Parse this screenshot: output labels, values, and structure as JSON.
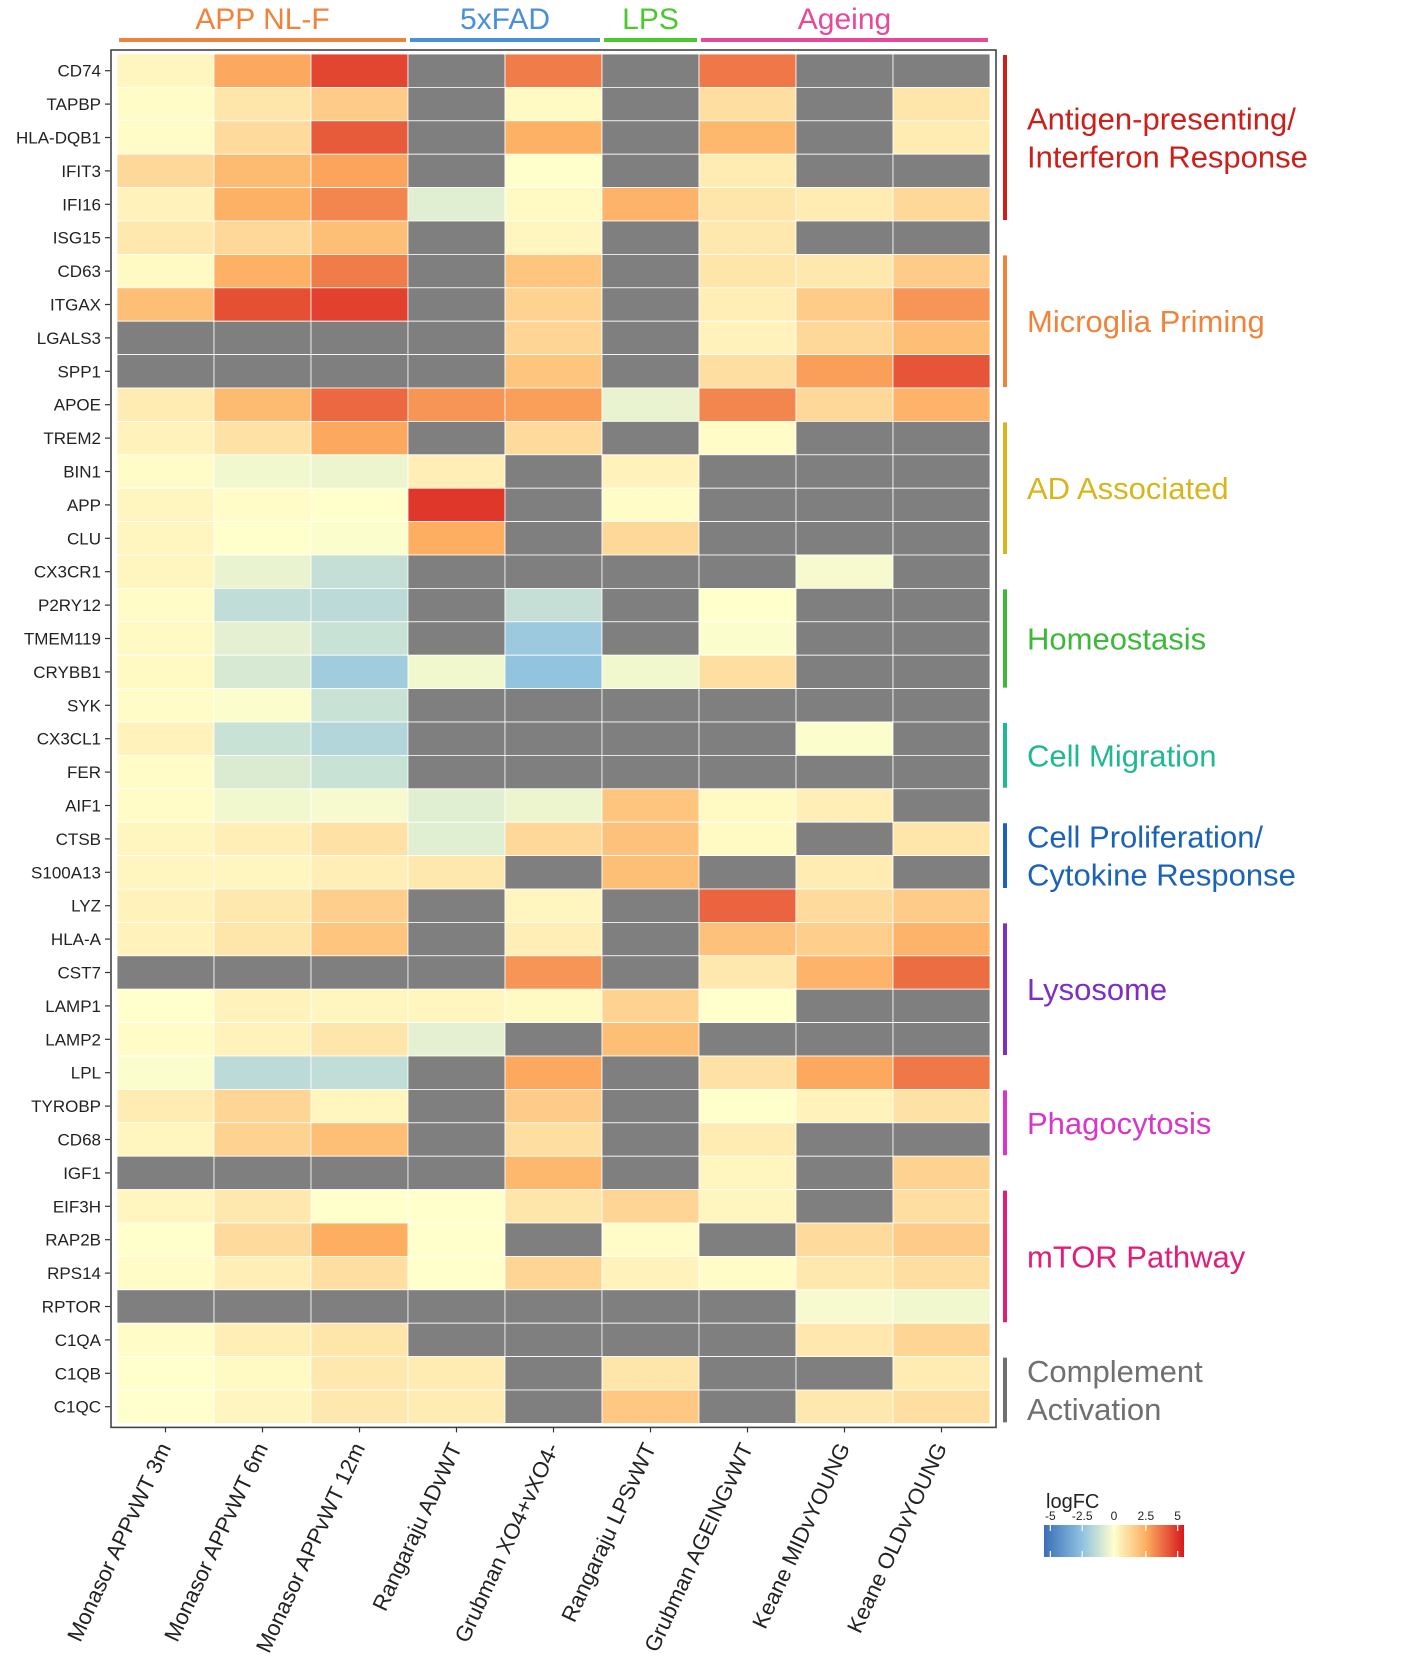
{
  "chart_data": {
    "type": "heatmap",
    "rows": [
      "CD74",
      "TAPBP",
      "HLA-DQB1",
      "IFIT3",
      "IFI16",
      "ISG15",
      "CD63",
      "ITGAX",
      "LGALS3",
      "SPP1",
      "APOE",
      "TREM2",
      "BIN1",
      "APP",
      "CLU",
      "CX3CR1",
      "P2RY12",
      "TMEM119",
      "CRYBB1",
      "SYK",
      "CX3CL1",
      "FER",
      "AIF1",
      "CTSB",
      "S100A13",
      "LYZ",
      "HLA-A",
      "CST7",
      "LAMP1",
      "LAMP2",
      "LPL",
      "TYROBP",
      "CD68",
      "IGF1",
      "EIF3H",
      "RAP2B",
      "RPS14",
      "RPTOR",
      "C1QA",
      "C1QB",
      "C1QC"
    ],
    "columns": [
      "Monasor APPvWT 3m",
      "Monasor APPvWT 6m",
      "Monasor APPvWT 12m",
      "Rangaraju ADvWT",
      "Grubman XO4+vXO4-",
      "Rangaraju LPSvWT",
      "Grubman AGEINGvWT",
      "Keane MIDvYOUNG",
      "Keane OLDvYOUNG"
    ],
    "values": [
      [
        0.3,
        2.6,
        4.6,
        null,
        3.5,
        null,
        3.6,
        null,
        null
      ],
      [
        0.1,
        0.8,
        1.6,
        null,
        0.2,
        null,
        1.0,
        null,
        0.8
      ],
      [
        0.1,
        1.1,
        4.2,
        null,
        2.4,
        null,
        2.2,
        null,
        0.6
      ],
      [
        1.2,
        2.1,
        2.7,
        null,
        0.0,
        null,
        0.6,
        null,
        null
      ],
      [
        0.4,
        2.4,
        3.3,
        -0.7,
        0.2,
        2.3,
        0.8,
        0.6,
        1.2
      ],
      [
        0.7,
        1.2,
        2.0,
        null,
        0.3,
        null,
        0.7,
        null,
        null
      ],
      [
        0.2,
        2.4,
        3.5,
        null,
        1.8,
        null,
        0.8,
        0.7,
        1.6
      ],
      [
        2.0,
        4.4,
        4.7,
        null,
        1.4,
        null,
        0.5,
        1.6,
        3.0
      ],
      [
        null,
        null,
        null,
        null,
        1.3,
        null,
        0.4,
        1.2,
        2.0
      ],
      [
        null,
        null,
        null,
        null,
        1.8,
        null,
        1.0,
        2.8,
        4.3
      ],
      [
        0.6,
        2.1,
        3.9,
        3.0,
        2.8,
        -0.5,
        3.3,
        1.2,
        2.3
      ],
      [
        0.4,
        0.9,
        2.6,
        null,
        1.1,
        null,
        0.1,
        null,
        null
      ],
      [
        0.1,
        -0.3,
        -0.4,
        0.5,
        null,
        0.4,
        null,
        null,
        null
      ],
      [
        0.3,
        0.1,
        0.0,
        4.9,
        null,
        0.1,
        null,
        null,
        null
      ],
      [
        0.3,
        0.0,
        -0.1,
        2.5,
        null,
        1.2,
        null,
        null,
        null
      ],
      [
        0.3,
        -0.5,
        -1.3,
        null,
        null,
        null,
        null,
        -0.2,
        null
      ],
      [
        0.1,
        -1.4,
        -1.5,
        null,
        -1.3,
        null,
        0.0,
        null,
        null
      ],
      [
        0.2,
        -0.6,
        -1.2,
        null,
        -2.2,
        null,
        -0.1,
        null,
        null
      ],
      [
        0.2,
        -0.9,
        -2.1,
        -0.3,
        -2.4,
        -0.3,
        1.0,
        null,
        null
      ],
      [
        0.1,
        -0.1,
        -1.2,
        null,
        null,
        null,
        null,
        null,
        null
      ],
      [
        0.4,
        -1.2,
        -1.7,
        null,
        null,
        null,
        null,
        -0.1,
        null
      ],
      [
        0.1,
        -0.8,
        -1.2,
        null,
        null,
        null,
        null,
        null,
        null
      ],
      [
        0.1,
        -0.3,
        -0.2,
        -0.7,
        -0.4,
        1.8,
        0.2,
        0.5,
        null
      ],
      [
        0.3,
        0.5,
        0.9,
        -0.7,
        1.2,
        1.9,
        0.2,
        null,
        0.8
      ],
      [
        0.3,
        0.3,
        0.5,
        0.7,
        null,
        2.0,
        null,
        0.6,
        null
      ],
      [
        0.4,
        0.7,
        1.5,
        null,
        0.3,
        null,
        4.0,
        1.1,
        1.6
      ],
      [
        0.4,
        0.8,
        1.8,
        null,
        0.5,
        null,
        1.9,
        1.5,
        2.3
      ],
      [
        null,
        null,
        null,
        null,
        3.0,
        null,
        0.7,
        2.3,
        3.8
      ],
      [
        0.0,
        0.4,
        0.3,
        0.3,
        0.2,
        1.4,
        0.0,
        null,
        null
      ],
      [
        0.1,
        0.4,
        0.8,
        -0.6,
        null,
        2.0,
        null,
        null,
        null
      ],
      [
        -0.1,
        -1.5,
        -1.4,
        null,
        2.6,
        null,
        0.9,
        2.6,
        3.6
      ],
      [
        0.6,
        1.3,
        0.3,
        null,
        1.6,
        null,
        0.0,
        0.4,
        0.9
      ],
      [
        0.3,
        1.4,
        2.0,
        null,
        1.0,
        null,
        0.6,
        null,
        null
      ],
      [
        null,
        null,
        null,
        null,
        2.2,
        null,
        0.3,
        null,
        1.4
      ],
      [
        0.3,
        0.7,
        0.0,
        0.0,
        0.8,
        1.3,
        0.3,
        null,
        1.0
      ],
      [
        0.0,
        1.1,
        2.5,
        0.0,
        null,
        0.1,
        null,
        1.1,
        1.6
      ],
      [
        0.1,
        0.5,
        1.0,
        0.0,
        1.3,
        0.4,
        0.1,
        0.7,
        1.0
      ],
      [
        null,
        null,
        null,
        null,
        null,
        null,
        null,
        -0.2,
        -0.3
      ],
      [
        0.1,
        0.5,
        0.8,
        null,
        null,
        null,
        null,
        0.7,
        1.3
      ],
      [
        0.0,
        0.2,
        0.7,
        0.6,
        null,
        0.8,
        null,
        null,
        0.6
      ],
      [
        0.0,
        0.3,
        0.7,
        0.6,
        null,
        1.7,
        null,
        0.7,
        1.0
      ]
    ],
    "missing_color": "#7f7f7f",
    "groups": [
      {
        "name": "APP NL-F",
        "color": "#f0833a",
        "columns": [
          0,
          2
        ]
      },
      {
        "name": "5xFAD",
        "color": "#4a90d9",
        "columns": [
          3,
          4
        ]
      },
      {
        "name": "LPS",
        "color": "#4cc92f",
        "columns": [
          5,
          5
        ]
      },
      {
        "name": "Ageing",
        "color": "#e8489a",
        "columns": [
          6,
          8
        ]
      }
    ],
    "categories": [
      {
        "lines": [
          "Antigen-presenting/",
          "Interferon Response"
        ],
        "color": "#cc1f1a",
        "rows": [
          0,
          5
        ]
      },
      {
        "lines": [
          "Microglia Priming"
        ],
        "color": "#f0833a",
        "rows": [
          6,
          10
        ]
      },
      {
        "lines": [
          "AD Associated"
        ],
        "color": "#d9b51d",
        "rows": [
          11,
          15
        ]
      },
      {
        "lines": [
          "Homeostasis"
        ],
        "color": "#3db83a",
        "rows": [
          16,
          19
        ]
      },
      {
        "lines": [
          "Cell Migration"
        ],
        "color": "#1fb893",
        "rows": [
          20,
          22
        ]
      },
      {
        "lines": [
          "Cell Proliferation/",
          "Cytokine Response"
        ],
        "color": "#1a63b8",
        "rows": [
          23,
          25
        ]
      },
      {
        "lines": [
          "Lysosome"
        ],
        "color": "#7b2fc4",
        "rows": [
          26,
          30
        ]
      },
      {
        "lines": [
          "Phagocytosis"
        ],
        "color": "#d836c9",
        "rows": [
          31,
          33
        ]
      },
      {
        "lines": [
          "mTOR Pathway"
        ],
        "color": "#e01d78",
        "rows": [
          34,
          38
        ]
      },
      {
        "lines": [
          "Complement",
          "Activation"
        ],
        "color": "#707070",
        "rows": [
          39,
          41
        ]
      }
    ],
    "legend": {
      "title": "logFC",
      "ticks": [
        -5,
        -2.5,
        0,
        2.5,
        5
      ],
      "tick_labels": [
        "-5",
        "-2.5",
        "0",
        "2.5",
        "5"
      ],
      "range": [
        -5.5,
        5.5
      ],
      "scale": [
        [
          -5.5,
          "#3a6fb8"
        ],
        [
          -2.5,
          "#8fc2e0"
        ],
        [
          0,
          "#ffffcc"
        ],
        [
          2.5,
          "#fdae61"
        ],
        [
          5.5,
          "#d7191c"
        ]
      ]
    }
  }
}
